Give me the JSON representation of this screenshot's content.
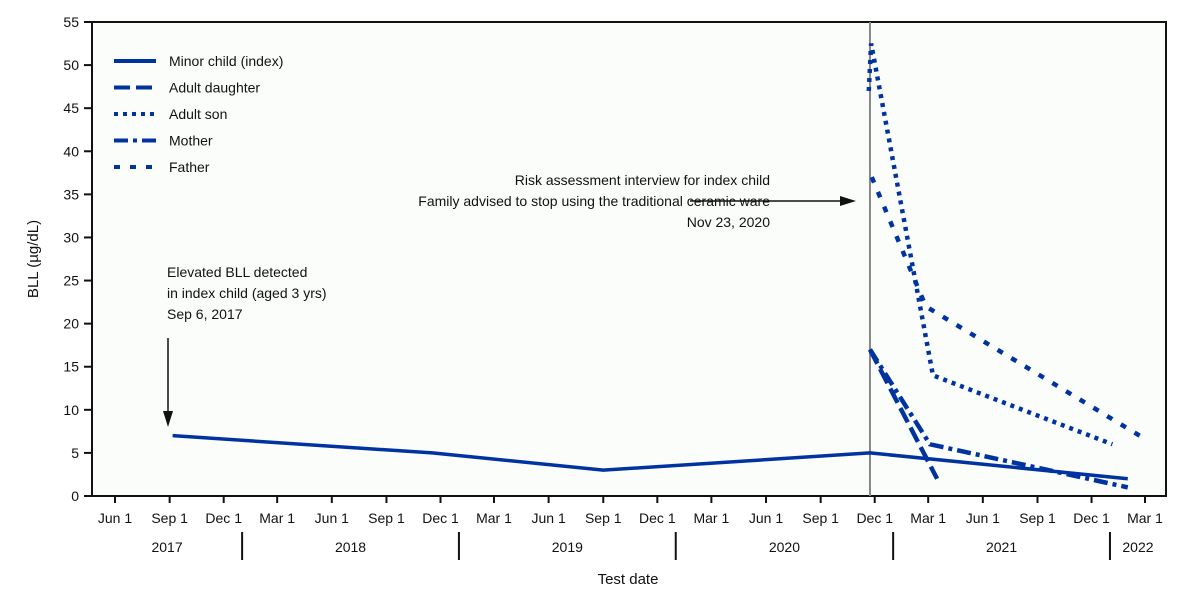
{
  "chart_data": {
    "type": "line",
    "xlabel": "Test date",
    "ylabel": "BLL (µg/dL)",
    "ylim": [
      0,
      55
    ],
    "yticks": [
      0,
      5,
      10,
      15,
      20,
      25,
      30,
      35,
      40,
      45,
      50,
      55
    ],
    "xlim": [
      "2017-04-15",
      "2022-04-15"
    ],
    "xticks": [
      {
        "date": "2017-06-01",
        "label": "Jun 1"
      },
      {
        "date": "2017-09-01",
        "label": "Sep 1"
      },
      {
        "date": "2017-12-01",
        "label": "Dec 1"
      },
      {
        "date": "2018-03-01",
        "label": "Mar 1"
      },
      {
        "date": "2018-06-01",
        "label": "Jun 1"
      },
      {
        "date": "2018-09-01",
        "label": "Sep 1"
      },
      {
        "date": "2018-12-01",
        "label": "Dec 1"
      },
      {
        "date": "2019-03-01",
        "label": "Mar 1"
      },
      {
        "date": "2019-06-01",
        "label": "Jun 1"
      },
      {
        "date": "2019-09-01",
        "label": "Sep 1"
      },
      {
        "date": "2019-12-01",
        "label": "Dec 1"
      },
      {
        "date": "2020-03-01",
        "label": "Mar 1"
      },
      {
        "date": "2020-06-01",
        "label": "Jun 1"
      },
      {
        "date": "2020-09-01",
        "label": "Sep 1"
      },
      {
        "date": "2020-12-01",
        "label": "Dec 1"
      },
      {
        "date": "2021-03-01",
        "label": "Mar 1"
      },
      {
        "date": "2021-06-01",
        "label": "Jun 1"
      },
      {
        "date": "2021-09-01",
        "label": "Sep 1"
      },
      {
        "date": "2021-12-01",
        "label": "Dec 1"
      },
      {
        "date": "2022-03-01",
        "label": "Mar 1"
      }
    ],
    "years": [
      {
        "label": "2017",
        "from": "2017-04-15",
        "to": "2018-01-01"
      },
      {
        "label": "2018",
        "from": "2018-01-01",
        "to": "2019-01-01"
      },
      {
        "label": "2019",
        "from": "2019-01-01",
        "to": "2020-01-01"
      },
      {
        "label": "2020",
        "from": "2020-01-01",
        "to": "2021-01-01"
      },
      {
        "label": "2021",
        "from": "2021-01-01",
        "to": "2022-01-01"
      },
      {
        "label": "2022",
        "from": "2022-01-01",
        "to": "2022-04-15"
      }
    ],
    "color": "#0033a0",
    "legend_position": "top-left",
    "grid": false,
    "series": [
      {
        "name": "Minor child (index)",
        "style": "solid",
        "points": [
          [
            "2017-09-06",
            7
          ],
          [
            "2018-11-17",
            5
          ],
          [
            "2019-09-01",
            3
          ],
          [
            "2020-11-23",
            5
          ],
          [
            "2022-01-31",
            2
          ]
        ]
      },
      {
        "name": "Adult daughter",
        "style": "long-dash",
        "points": [
          [
            "2020-11-23",
            17
          ],
          [
            "2021-03-16",
            2
          ]
        ]
      },
      {
        "name": "Adult son",
        "style": "dotted",
        "points": [
          [
            "2020-11-21",
            47
          ],
          [
            "2020-11-25",
            52.5
          ],
          [
            "2021-03-09",
            14
          ],
          [
            "2022-01-05",
            6
          ]
        ]
      },
      {
        "name": "Mother",
        "style": "dash-dot",
        "points": [
          [
            "2020-11-23",
            17
          ],
          [
            "2021-03-04",
            6
          ],
          [
            "2022-01-31",
            1
          ]
        ]
      },
      {
        "name": "Father",
        "style": "short-dash",
        "points": [
          [
            "2020-11-26",
            37
          ],
          [
            "2021-02-25",
            22
          ],
          [
            "2022-03-04",
            6.5
          ]
        ]
      }
    ],
    "event_line_date": "2020-11-23",
    "annotations": [
      {
        "id": "risk",
        "lines": [
          "Risk assessment interview for index child",
          "Family advised to stop using the traditional ceramic ware",
          "Nov 23, 2020"
        ]
      },
      {
        "id": "elevated",
        "lines": [
          "Elevated BLL detected",
          "in index child (aged 3 yrs)",
          "Sep 6, 2017"
        ]
      }
    ]
  }
}
